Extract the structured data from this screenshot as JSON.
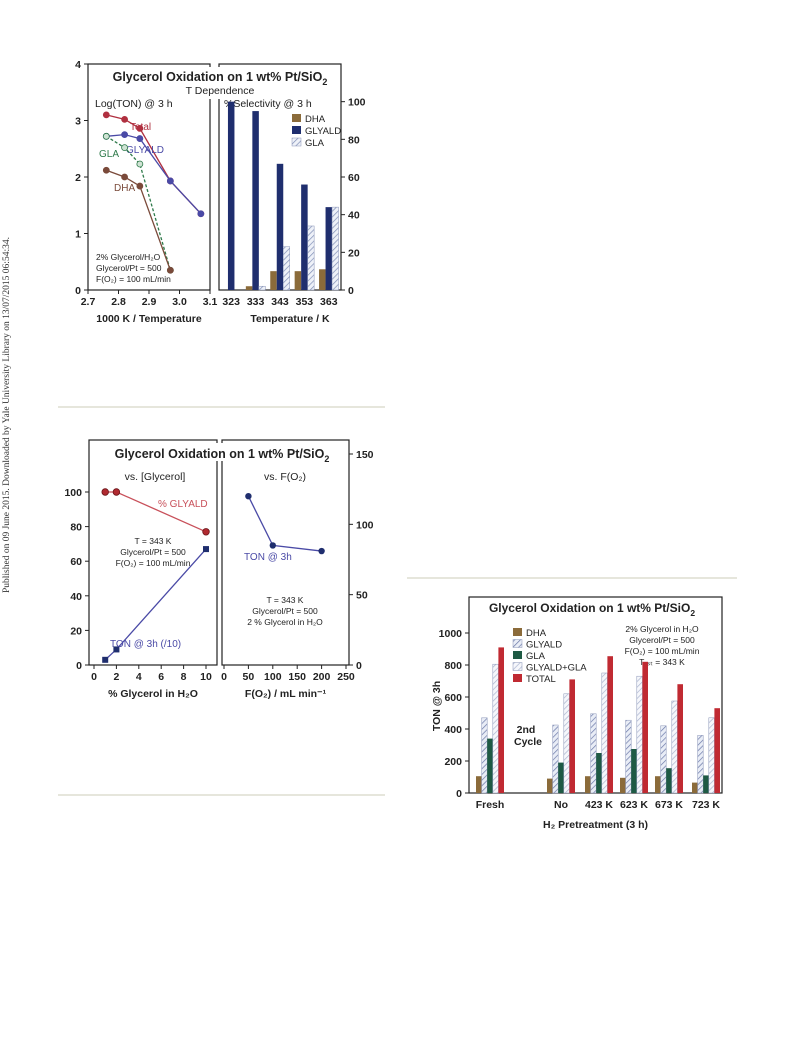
{
  "page": {
    "sidebar_text": "Published on 09 June 2015. Downloaded by Yale University Library on 13/07/2015 06:54:34."
  },
  "figure1": {
    "title": "Glycerol Oxidation on 1 wt% Pt/SiO",
    "title_sub": "2",
    "subtitle": "T Dependence",
    "left_header": "Log(TON) @ 3 h",
    "right_header": "%Selectivity @ 3 h",
    "conditions": [
      "2% Glycerol/H₂O",
      "Glycerol/Pt = 500",
      "F(O₂) = 100 mL/min"
    ]
  },
  "figure2": {
    "title": "Glycerol Oxidation on 1 wt% Pt/SiO",
    "title_sub": "2",
    "left_header": "vs. [Glycerol]",
    "right_header": "vs. F(O₂)",
    "left_conditions": [
      "T = 343 K",
      "Glycerol/Pt = 500",
      "F(O₂) = 100 mL/min"
    ],
    "right_conditions": [
      "T = 343 K",
      "Glycerol/Pt = 500",
      "2 % Glycerol in H₂O"
    ]
  },
  "figure3": {
    "title": "Glycerol Oxidation on 1 wt% Pt/SiO",
    "title_sub": "2",
    "conditions": [
      "2% Glycerol in H₂O",
      "Glycerol/Pt = 500",
      "F(O₂) = 100 mL/min",
      "T₁ₛₜ = 343 K"
    ],
    "annotation": [
      "2nd",
      "Cycle"
    ]
  },
  "chart_data": [
    {
      "type": "line",
      "panel": "fig1-left",
      "xlabel": "1000 K / Temperature",
      "xlim": [
        2.7,
        3.1
      ],
      "ylim": [
        0,
        4
      ],
      "xticks": [
        "2.7",
        "2.8",
        "2.9",
        "3.0",
        "3.1"
      ],
      "yticks": [
        "0",
        "1",
        "2",
        "3",
        "4"
      ],
      "series": [
        {
          "name": "Total",
          "color": "#b03040",
          "dashed": false,
          "x": [
            2.76,
            2.82,
            2.87,
            2.97,
            3.07
          ],
          "y": [
            3.1,
            3.02,
            2.86,
            1.93,
            1.35
          ]
        },
        {
          "name": "GLYALD",
          "color": "#4a4aa6",
          "dashed": false,
          "x": [
            2.76,
            2.82,
            2.87,
            2.97,
            3.07
          ],
          "y": [
            2.72,
            2.75,
            2.68,
            1.93,
            1.35
          ]
        },
        {
          "name": "GLA",
          "color": "#2e7a4a",
          "dashed": true,
          "x": [
            2.76,
            2.82,
            2.87,
            2.97
          ],
          "y": [
            2.72,
            2.52,
            2.23,
            0.35
          ]
        },
        {
          "name": "DHA",
          "color": "#7a4a3a",
          "dashed": false,
          "x": [
            2.76,
            2.82,
            2.87,
            2.97
          ],
          "y": [
            2.12,
            2.0,
            1.84,
            0.35
          ]
        }
      ]
    },
    {
      "type": "bar",
      "panel": "fig1-right",
      "xlabel": "Temperature / K",
      "ylim": [
        0,
        120
      ],
      "yticks": [
        "0",
        "20",
        "40",
        "60",
        "80",
        "100"
      ],
      "categories": [
        "323",
        "333",
        "343",
        "353",
        "363"
      ],
      "legend": "top-right",
      "series": [
        {
          "name": "DHA",
          "color": "#8b6b3a",
          "values": [
            0,
            2,
            10,
            10,
            11
          ]
        },
        {
          "name": "GLYALD",
          "color": "#1f2e6e",
          "values": [
            100,
            95,
            67,
            56,
            44
          ]
        },
        {
          "name": "GLA",
          "color": "#b8c4dc",
          "hatched": true,
          "values": [
            0,
            2,
            23,
            34,
            44
          ]
        }
      ]
    },
    {
      "type": "line",
      "panel": "fig2-left",
      "xlabel": "% Glycerol in H₂O",
      "xlim": [
        0,
        10
      ],
      "ylim": [
        0,
        100
      ],
      "xticks": [
        "0",
        "2",
        "4",
        "6",
        "8",
        "10"
      ],
      "yticks": [
        "0",
        "20",
        "40",
        "60",
        "80",
        "100"
      ],
      "series": [
        {
          "name": "% GLYALD",
          "color": "#c8505a",
          "x": [
            1,
            2,
            10
          ],
          "y": [
            100,
            100,
            77
          ]
        },
        {
          "name": "TON @ 3h (/10)",
          "color": "#4a4aa6",
          "x": [
            1,
            2,
            10
          ],
          "y": [
            3,
            9,
            67
          ]
        }
      ]
    },
    {
      "type": "line",
      "panel": "fig2-right",
      "xlabel": "F(O₂) / mL min⁻¹",
      "xlim": [
        0,
        250
      ],
      "ylim": [
        0,
        150
      ],
      "xticks": [
        "0",
        "50",
        "100",
        "150",
        "200",
        "250"
      ],
      "yticks": [
        "0",
        "50",
        "100",
        "150"
      ],
      "series": [
        {
          "name": "TON @ 3h",
          "color": "#4a4aa6",
          "x": [
            50,
            100,
            200
          ],
          "y": [
            120,
            85,
            81
          ]
        }
      ]
    },
    {
      "type": "bar",
      "panel": "fig3",
      "ylabel": "TON @ 3h",
      "xlabel": "H₂ Pretreatment (3 h)",
      "ylim": [
        0,
        1100
      ],
      "yticks": [
        "0",
        "200",
        "400",
        "600",
        "800",
        "1000"
      ],
      "categories": [
        "Fresh",
        "No",
        "423 K",
        "623 K",
        "673 K",
        "723 K"
      ],
      "legend": "top-left",
      "series": [
        {
          "name": "DHA",
          "color": "#8b6b3a",
          "values": [
            105,
            90,
            105,
            95,
            105,
            65
          ]
        },
        {
          "name": "GLYALD",
          "color": "#aeb8d4",
          "hatched": true,
          "values": [
            470,
            425,
            495,
            455,
            420,
            360
          ]
        },
        {
          "name": "GLA",
          "color": "#1e5a44",
          "values": [
            340,
            190,
            250,
            275,
            155,
            110
          ]
        },
        {
          "name": "GLYALD+GLA",
          "color": "#dde2ee",
          "hatched": true,
          "values": [
            805,
            620,
            750,
            730,
            575,
            470
          ]
        },
        {
          "name": "TOTAL",
          "color": "#c02a32",
          "values": [
            910,
            710,
            855,
            820,
            680,
            530
          ]
        }
      ]
    }
  ]
}
